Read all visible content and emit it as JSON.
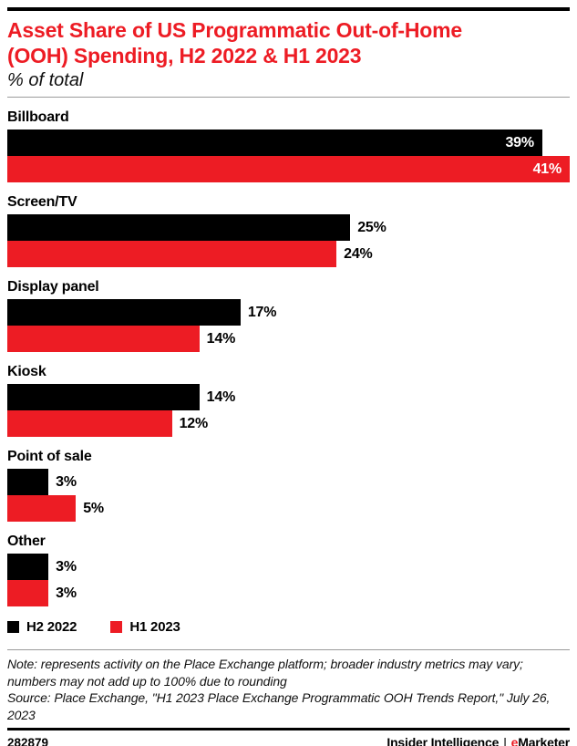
{
  "header": {
    "title_lines": [
      "Asset Share of US Programmatic Out-of-Home",
      "(OOH) Spending, H2 2022 & H1 2023"
    ],
    "subtitle": "% of total"
  },
  "chart_data": {
    "type": "bar",
    "orientation": "horizontal",
    "title": "Asset Share of US Programmatic Out-of-Home (OOH) Spending, H2 2022 & H1 2023",
    "subtitle": "% of total",
    "categories": [
      "Billboard",
      "Screen/TV",
      "Display panel",
      "Kiosk",
      "Point of sale",
      "Other"
    ],
    "series": [
      {
        "name": "H2 2022",
        "color": "#000000",
        "values": [
          39,
          25,
          17,
          14,
          3,
          3
        ]
      },
      {
        "name": "H1 2023",
        "color": "#ED1C24",
        "values": [
          41,
          24,
          14,
          12,
          5,
          3
        ]
      }
    ],
    "value_suffix": "%",
    "xlim": [
      0,
      41
    ],
    "grid": false,
    "legend_position": "bottom-left",
    "value_labels": "end-of-bar"
  },
  "footnote": {
    "note": "Note: represents activity on the Place Exchange platform; broader industry metrics may vary; numbers may not add up to 100% due to rounding",
    "source": "Source: Place Exchange, \"H1 2023 Place Exchange Programmatic OOH Trends Report,\" July 26, 2023"
  },
  "footer": {
    "chart_id": "282879",
    "brand_primary": "Insider Intelligence",
    "brand_separator": "|",
    "brand_secondary_accent": "e",
    "brand_secondary_rest": "Marketer"
  },
  "colors": {
    "accent_red": "#ED1C24",
    "bar_black": "#000000",
    "rule_gray": "#9b9b9b"
  }
}
